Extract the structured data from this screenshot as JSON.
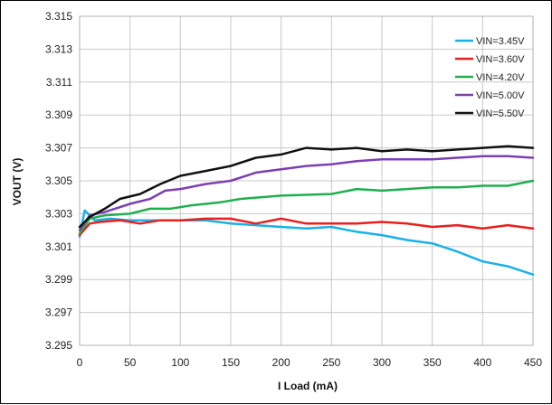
{
  "chart_data": {
    "type": "line",
    "title": "",
    "xlabel": "I Load (mA)",
    "ylabel": "VOUT (V)",
    "xlim": [
      0,
      450
    ],
    "ylim": [
      3.295,
      3.315
    ],
    "x_ticks": [
      0,
      50,
      100,
      150,
      200,
      250,
      300,
      350,
      400,
      450
    ],
    "y_ticks": [
      "3.295",
      "3.297",
      "3.299",
      "3.301",
      "3.303",
      "3.305",
      "3.307",
      "3.309",
      "3.311",
      "3.313",
      "3.315"
    ],
    "grid": true,
    "legend_position": "top-right",
    "series": [
      {
        "name": "VIN=3.45V",
        "color": "#1ab0e8",
        "points": [
          [
            0,
            3.3016
          ],
          [
            5,
            3.3032
          ],
          [
            15,
            3.3026
          ],
          [
            30,
            3.3027
          ],
          [
            50,
            3.3026
          ],
          [
            70,
            3.3026
          ],
          [
            100,
            3.3026
          ],
          [
            125,
            3.3026
          ],
          [
            150,
            3.3024
          ],
          [
            175,
            3.3023
          ],
          [
            200,
            3.3022
          ],
          [
            225,
            3.3021
          ],
          [
            250,
            3.3022
          ],
          [
            275,
            3.3019
          ],
          [
            300,
            3.3017
          ],
          [
            325,
            3.3014
          ],
          [
            350,
            3.3012
          ],
          [
            375,
            3.3007
          ],
          [
            400,
            3.3001
          ],
          [
            425,
            3.2998
          ],
          [
            450,
            3.2993
          ]
        ]
      },
      {
        "name": "VIN=3.60V",
        "color": "#e8201e",
        "points": [
          [
            0,
            3.3017
          ],
          [
            10,
            3.3024
          ],
          [
            20,
            3.3025
          ],
          [
            40,
            3.3026
          ],
          [
            60,
            3.3024
          ],
          [
            80,
            3.3026
          ],
          [
            100,
            3.3026
          ],
          [
            125,
            3.3027
          ],
          [
            150,
            3.3027
          ],
          [
            175,
            3.3024
          ],
          [
            200,
            3.3027
          ],
          [
            225,
            3.3024
          ],
          [
            250,
            3.3024
          ],
          [
            275,
            3.3024
          ],
          [
            300,
            3.3025
          ],
          [
            325,
            3.3024
          ],
          [
            350,
            3.3022
          ],
          [
            375,
            3.3023
          ],
          [
            400,
            3.3021
          ],
          [
            425,
            3.3023
          ],
          [
            450,
            3.3021
          ]
        ]
      },
      {
        "name": "VIN=4.20V",
        "color": "#1fb04e",
        "points": [
          [
            0,
            3.3018
          ],
          [
            10,
            3.3027
          ],
          [
            25,
            3.3029
          ],
          [
            50,
            3.303
          ],
          [
            70,
            3.3033
          ],
          [
            90,
            3.3033
          ],
          [
            110,
            3.3035
          ],
          [
            140,
            3.3037
          ],
          [
            160,
            3.3039
          ],
          [
            200,
            3.3041
          ],
          [
            250,
            3.3042
          ],
          [
            275,
            3.3045
          ],
          [
            300,
            3.3044
          ],
          [
            325,
            3.3045
          ],
          [
            350,
            3.3046
          ],
          [
            375,
            3.3046
          ],
          [
            400,
            3.3047
          ],
          [
            425,
            3.3047
          ],
          [
            450,
            3.305
          ]
        ]
      },
      {
        "name": "VIN=5.00V",
        "color": "#7d3fb2",
        "points": [
          [
            0,
            3.302
          ],
          [
            10,
            3.3029
          ],
          [
            25,
            3.3031
          ],
          [
            50,
            3.3036
          ],
          [
            70,
            3.3039
          ],
          [
            85,
            3.3044
          ],
          [
            100,
            3.3045
          ],
          [
            125,
            3.3048
          ],
          [
            150,
            3.305
          ],
          [
            175,
            3.3055
          ],
          [
            200,
            3.3057
          ],
          [
            225,
            3.3059
          ],
          [
            250,
            3.306
          ],
          [
            275,
            3.3062
          ],
          [
            300,
            3.3063
          ],
          [
            325,
            3.3063
          ],
          [
            350,
            3.3063
          ],
          [
            375,
            3.3064
          ],
          [
            400,
            3.3065
          ],
          [
            425,
            3.3065
          ],
          [
            450,
            3.3064
          ]
        ]
      },
      {
        "name": "VIN=5.50V",
        "color": "#111111",
        "points": [
          [
            0,
            3.3022
          ],
          [
            10,
            3.3028
          ],
          [
            25,
            3.3033
          ],
          [
            40,
            3.3039
          ],
          [
            60,
            3.3042
          ],
          [
            80,
            3.3048
          ],
          [
            100,
            3.3053
          ],
          [
            125,
            3.3056
          ],
          [
            150,
            3.3059
          ],
          [
            175,
            3.3064
          ],
          [
            200,
            3.3066
          ],
          [
            225,
            3.307
          ],
          [
            250,
            3.3069
          ],
          [
            275,
            3.307
          ],
          [
            300,
            3.3068
          ],
          [
            325,
            3.3069
          ],
          [
            350,
            3.3068
          ],
          [
            375,
            3.3069
          ],
          [
            400,
            3.307
          ],
          [
            425,
            3.3071
          ],
          [
            450,
            3.307
          ]
        ]
      }
    ]
  }
}
